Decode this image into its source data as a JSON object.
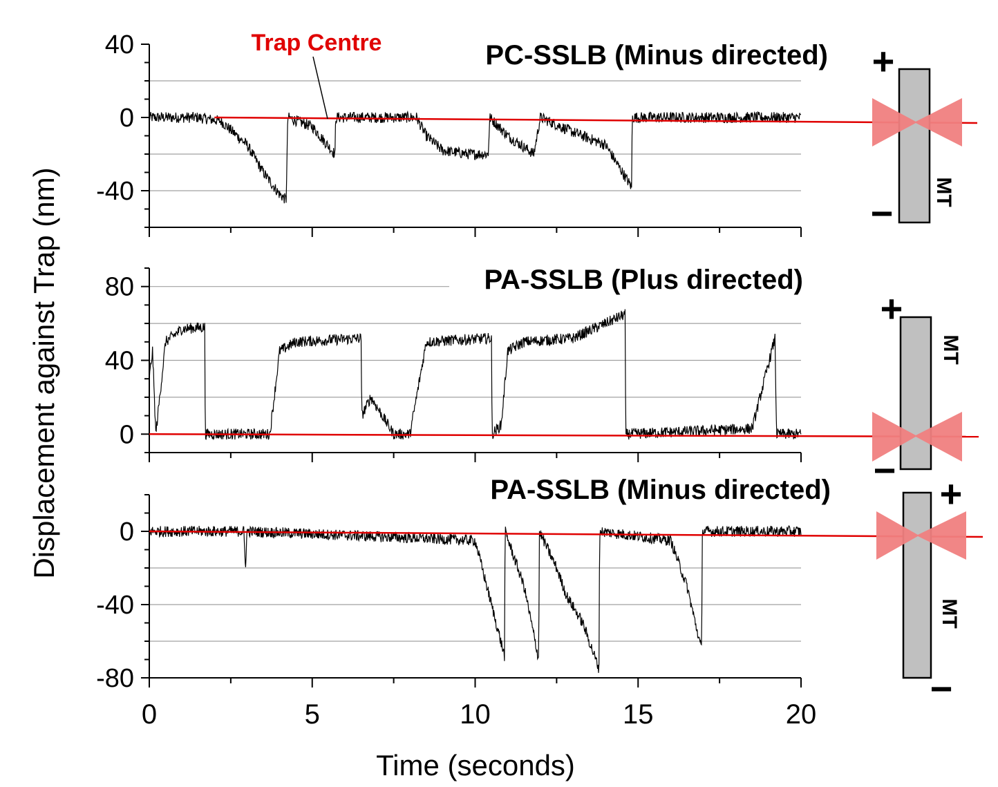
{
  "figure": {
    "ylabel": "Displacement against Trap (nm)",
    "xlabel": "Time (seconds)",
    "annotation": "Trap Centre",
    "colors": {
      "trace": "#000000",
      "trap_line": "#e00000",
      "grid": "#a0a0a0",
      "mt_fill": "#c0c0c0",
      "trap_shape": "#f08080"
    }
  },
  "schematics": [
    {
      "plus": "+",
      "minus": "−",
      "mt": "MT"
    },
    {
      "plus": "+",
      "minus": "−",
      "mt": "MT"
    },
    {
      "plus": "+",
      "minus": "−",
      "mt": "MT"
    }
  ],
  "chart_data": [
    {
      "type": "line",
      "title": "PC-SSLB (Minus directed)",
      "xlim": [
        0,
        20
      ],
      "ylim": [
        -60,
        40
      ],
      "yticks": [
        40,
        0,
        -40
      ],
      "grid_y": [
        20,
        -20,
        -40
      ],
      "xticks": [
        0,
        5,
        10,
        15,
        20
      ],
      "series": [
        {
          "x": [
            0,
            1.5,
            2.2,
            3.0,
            3.5,
            4.0,
            4.2,
            4.25,
            5.0,
            5.7,
            5.72,
            7.5,
            8.2,
            8.5,
            9.0,
            9.8,
            10.4,
            10.45,
            11.0,
            11.8,
            12.0,
            13.0,
            14.0,
            14.8,
            14.82,
            20
          ],
          "y": [
            0,
            0,
            -2,
            -15,
            -30,
            -42,
            -45,
            0,
            -5,
            -20,
            0,
            0,
            0,
            -10,
            -18,
            -20,
            -20,
            0,
            -10,
            -20,
            0,
            -8,
            -15,
            -38,
            0,
            0
          ]
        }
      ]
    },
    {
      "type": "line",
      "title": "PA-SSLB (Plus directed)",
      "xlim": [
        0,
        20
      ],
      "ylim": [
        -10,
        90
      ],
      "yticks": [
        80,
        40,
        0
      ],
      "grid_y": [
        80,
        60,
        40,
        20
      ],
      "xticks": [
        0,
        5,
        10,
        15,
        20
      ],
      "series": [
        {
          "x": [
            0,
            0.1,
            0.2,
            0.5,
            1.0,
            1.7,
            1.72,
            3.7,
            4.0,
            4.5,
            6.5,
            6.52,
            6.8,
            7.5,
            8.0,
            8.5,
            10.5,
            10.52,
            10.8,
            11.0,
            11.5,
            13.0,
            14.0,
            14.6,
            14.62,
            18.5,
            19.2,
            19.25,
            20
          ],
          "y": [
            30,
            45,
            0,
            50,
            57,
            58,
            0,
            0,
            45,
            50,
            52,
            10,
            20,
            0,
            0,
            50,
            52,
            0,
            5,
            45,
            50,
            52,
            60,
            65,
            0,
            3,
            52,
            0,
            0
          ]
        }
      ]
    },
    {
      "type": "line",
      "title": "PA-SSLB (Minus directed)",
      "xlim": [
        0,
        20
      ],
      "ylim": [
        -80,
        20
      ],
      "yticks": [
        0,
        -40,
        -80
      ],
      "grid_y": [
        -20,
        -40,
        -60
      ],
      "xticks": [
        0,
        5,
        10,
        15,
        20
      ],
      "series": [
        {
          "x": [
            0,
            2.9,
            2.95,
            3.0,
            10.0,
            10.5,
            10.9,
            10.92,
            11.5,
            11.95,
            11.97,
            12.5,
            12.8,
            13.3,
            13.8,
            13.82,
            16.0,
            16.5,
            16.95,
            16.97,
            20
          ],
          "y": [
            0,
            0,
            -20,
            0,
            -5,
            -40,
            -68,
            0,
            -30,
            -70,
            0,
            -20,
            -35,
            -50,
            -75,
            0,
            -5,
            -30,
            -65,
            0,
            0
          ]
        }
      ]
    }
  ]
}
